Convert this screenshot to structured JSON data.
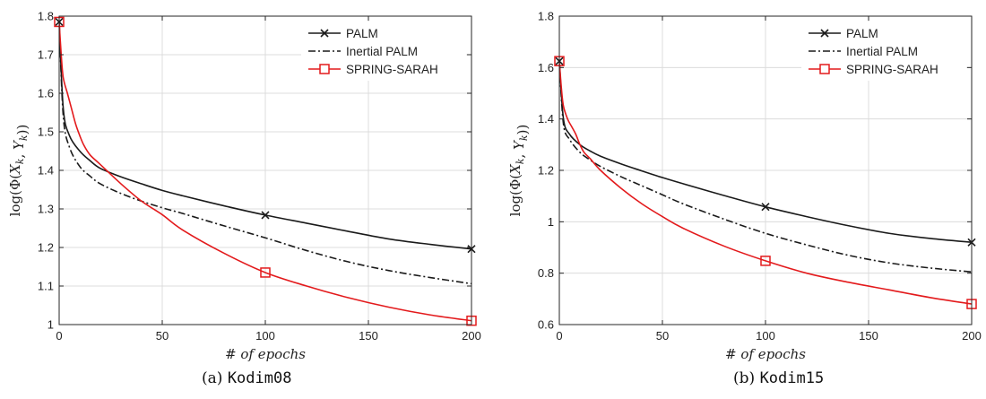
{
  "chart_data": [
    {
      "type": "line",
      "title": "",
      "xlabel": "# of epochs",
      "ylabel": "log(Φ(X_k, Y_k))",
      "ylabel_parts": {
        "pre": "log(Φ(",
        "x": "X",
        "k1": "k",
        "sep": ", ",
        "y": "Y",
        "k2": "k",
        "post": "))"
      },
      "xlim": [
        0,
        200
      ],
      "ylim": [
        1.0,
        1.8
      ],
      "xticks": [
        0,
        50,
        100,
        150,
        200
      ],
      "yticks": [
        1.0,
        1.1,
        1.2,
        1.3,
        1.4,
        1.5,
        1.6,
        1.7,
        1.8
      ],
      "ytick_labels": [
        "1",
        "1.1",
        "1.2",
        "1.3",
        "1.4",
        "1.5",
        "1.6",
        "1.7",
        "1.8"
      ],
      "grid": true,
      "legend_position": "top-right",
      "caption": {
        "label": "(a) ",
        "name": "Kodim08"
      },
      "series": [
        {
          "name": "PALM",
          "color": "#1a1a1a",
          "style": "solid",
          "marker": "x",
          "x": [
            0,
            2,
            5,
            10,
            15,
            20,
            30,
            40,
            50,
            60,
            80,
            100,
            120,
            140,
            160,
            180,
            200
          ],
          "y": [
            1.785,
            1.56,
            1.49,
            1.45,
            1.425,
            1.405,
            1.383,
            1.365,
            1.348,
            1.334,
            1.308,
            1.284,
            1.263,
            1.242,
            1.222,
            1.208,
            1.196
          ],
          "marker_points": [
            [
              0,
              1.785
            ],
            [
              100,
              1.284
            ],
            [
              200,
              1.196
            ]
          ]
        },
        {
          "name": "Inertial PALM",
          "color": "#1a1a1a",
          "style": "dashdot",
          "marker": "none",
          "x": [
            0,
            2,
            5,
            10,
            15,
            20,
            30,
            40,
            50,
            60,
            80,
            100,
            120,
            140,
            160,
            180,
            200
          ],
          "y": [
            1.785,
            1.54,
            1.46,
            1.41,
            1.385,
            1.365,
            1.34,
            1.32,
            1.303,
            1.288,
            1.256,
            1.225,
            1.192,
            1.163,
            1.14,
            1.122,
            1.106
          ],
          "marker_points": []
        },
        {
          "name": "SPRING-SARAH",
          "color": "#e31a1c",
          "style": "solid",
          "marker": "square",
          "x": [
            0,
            1,
            2,
            4,
            6,
            8,
            10,
            12,
            15,
            20,
            30,
            40,
            50,
            60,
            80,
            100,
            120,
            140,
            160,
            180,
            200
          ],
          "y": [
            1.785,
            1.7,
            1.64,
            1.6,
            1.56,
            1.52,
            1.49,
            1.465,
            1.44,
            1.415,
            1.365,
            1.32,
            1.285,
            1.245,
            1.185,
            1.135,
            1.1,
            1.07,
            1.045,
            1.025,
            1.01
          ],
          "marker_points": [
            [
              0,
              1.785
            ],
            [
              100,
              1.135
            ],
            [
              200,
              1.01
            ]
          ]
        }
      ]
    },
    {
      "type": "line",
      "title": "",
      "xlabel": "# of epochs",
      "ylabel": "log(Φ(X_k, Y_k))",
      "ylabel_parts": {
        "pre": "log(Φ(",
        "x": "X",
        "k1": "k",
        "sep": ", ",
        "y": "Y",
        "k2": "k",
        "post": "))"
      },
      "xlim": [
        0,
        200
      ],
      "ylim": [
        0.6,
        1.8
      ],
      "xticks": [
        0,
        50,
        100,
        150,
        200
      ],
      "yticks": [
        0.6,
        0.8,
        1.0,
        1.2,
        1.4,
        1.6,
        1.8
      ],
      "ytick_labels": [
        "0.6",
        "0.8",
        "1",
        "1.2",
        "1.4",
        "1.6",
        "1.8"
      ],
      "grid": true,
      "legend_position": "top-right",
      "caption": {
        "label": "(b) ",
        "name": "Kodim15"
      },
      "series": [
        {
          "name": "PALM",
          "color": "#1a1a1a",
          "style": "solid",
          "marker": "x",
          "x": [
            0,
            2,
            5,
            10,
            15,
            20,
            30,
            40,
            50,
            60,
            80,
            100,
            120,
            140,
            160,
            180,
            200
          ],
          "y": [
            1.625,
            1.4,
            1.34,
            1.3,
            1.275,
            1.255,
            1.225,
            1.198,
            1.172,
            1.148,
            1.102,
            1.058,
            1.02,
            0.985,
            0.955,
            0.935,
            0.92
          ],
          "marker_points": [
            [
              0,
              1.625
            ],
            [
              100,
              1.058
            ],
            [
              200,
              0.92
            ]
          ]
        },
        {
          "name": "Inertial PALM",
          "color": "#1a1a1a",
          "style": "dashdot",
          "marker": "none",
          "x": [
            0,
            2,
            5,
            10,
            15,
            20,
            30,
            40,
            50,
            60,
            80,
            100,
            120,
            140,
            160,
            180,
            200
          ],
          "y": [
            1.625,
            1.38,
            1.32,
            1.27,
            1.24,
            1.215,
            1.175,
            1.14,
            1.105,
            1.07,
            1.01,
            0.955,
            0.91,
            0.87,
            0.84,
            0.82,
            0.805
          ],
          "marker_points": []
        },
        {
          "name": "SPRING-SARAH",
          "color": "#e31a1c",
          "style": "solid",
          "marker": "square",
          "x": [
            0,
            1,
            2,
            4,
            6,
            8,
            10,
            12,
            15,
            20,
            30,
            40,
            50,
            60,
            80,
            100,
            120,
            140,
            160,
            180,
            200
          ],
          "y": [
            1.625,
            1.52,
            1.45,
            1.4,
            1.37,
            1.34,
            1.3,
            1.27,
            1.245,
            1.2,
            1.13,
            1.07,
            1.02,
            0.975,
            0.905,
            0.848,
            0.8,
            0.765,
            0.735,
            0.705,
            0.68
          ],
          "marker_points": [
            [
              0,
              1.625
            ],
            [
              100,
              0.848
            ],
            [
              200,
              0.68
            ]
          ]
        }
      ]
    }
  ]
}
